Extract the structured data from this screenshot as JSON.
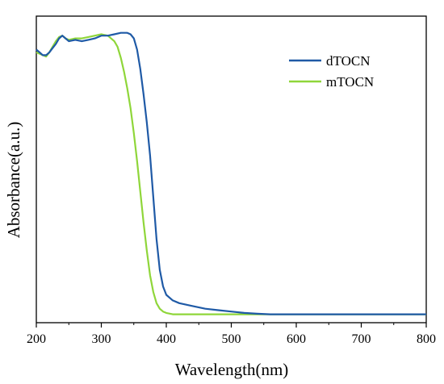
{
  "chart_data": {
    "type": "line",
    "title": "",
    "xlabel": "Wavelength(nm)",
    "ylabel": "Absorbance(a.u.)",
    "xlim": [
      200,
      800
    ],
    "ylim": [
      0,
      1.1
    ],
    "x_ticks": [
      "200",
      "300",
      "400",
      "500",
      "600",
      "700",
      "800"
    ],
    "y_ticks_labeled": false,
    "grid": false,
    "legend_position": "top-right",
    "series": [
      {
        "name": "dTOCN",
        "color": "#1f5aa6",
        "x": [
          200,
          205,
          210,
          215,
          220,
          225,
          230,
          235,
          240,
          245,
          250,
          260,
          270,
          280,
          290,
          300,
          310,
          320,
          330,
          340,
          345,
          350,
          355,
          360,
          365,
          370,
          375,
          380,
          385,
          390,
          395,
          400,
          410,
          420,
          440,
          460,
          480,
          500,
          520,
          540,
          560,
          580,
          600,
          650,
          700,
          750,
          800
        ],
        "y": [
          0.98,
          0.97,
          0.96,
          0.96,
          0.97,
          0.985,
          1.0,
          1.02,
          1.03,
          1.02,
          1.01,
          1.015,
          1.01,
          1.015,
          1.02,
          1.03,
          1.03,
          1.035,
          1.04,
          1.04,
          1.035,
          1.02,
          0.98,
          0.91,
          0.82,
          0.72,
          0.6,
          0.45,
          0.3,
          0.19,
          0.13,
          0.1,
          0.08,
          0.07,
          0.06,
          0.05,
          0.045,
          0.04,
          0.035,
          0.032,
          0.03,
          0.03,
          0.03,
          0.03,
          0.03,
          0.03,
          0.03
        ]
      },
      {
        "name": "mTOCN",
        "color": "#8fd63a",
        "x": [
          200,
          205,
          210,
          215,
          220,
          225,
          230,
          235,
          240,
          245,
          250,
          260,
          270,
          280,
          290,
          300,
          310,
          320,
          325,
          330,
          335,
          340,
          345,
          350,
          355,
          360,
          365,
          370,
          375,
          380,
          385,
          390,
          395,
          400,
          410,
          420,
          440,
          460,
          500,
          550,
          600,
          700,
          800
        ],
        "y": [
          0.97,
          0.965,
          0.96,
          0.955,
          0.97,
          0.99,
          1.01,
          1.025,
          1.03,
          1.02,
          1.015,
          1.02,
          1.02,
          1.025,
          1.03,
          1.035,
          1.03,
          1.01,
          0.99,
          0.95,
          0.9,
          0.84,
          0.77,
          0.68,
          0.58,
          0.47,
          0.36,
          0.26,
          0.17,
          0.11,
          0.07,
          0.05,
          0.04,
          0.035,
          0.03,
          0.03,
          0.03,
          0.03,
          0.03,
          0.03,
          0.03,
          0.03,
          0.03
        ]
      }
    ]
  }
}
